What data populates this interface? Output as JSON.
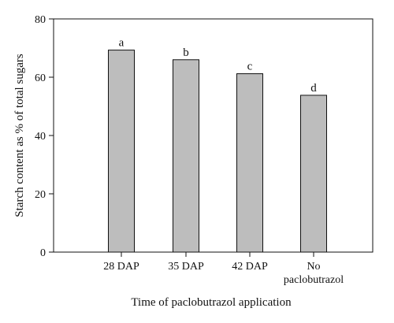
{
  "chart_data": {
    "type": "bar",
    "categories": [
      "28 DAP",
      "35 DAP",
      "42 DAP",
      "No paclobutrazol"
    ],
    "values": [
      69.3,
      66.0,
      61.2,
      53.8
    ],
    "significance_letters": [
      "a",
      "b",
      "c",
      "d"
    ],
    "xlabel": "Time of paclobutrazol application",
    "ylabel": "Starch content as % of total sugars",
    "ylim": [
      0,
      80
    ],
    "yticks": [
      0,
      20,
      40,
      60,
      80
    ],
    "grid": false,
    "bar_color": "#bdbdbd",
    "bar_edge_color": "#111111"
  }
}
